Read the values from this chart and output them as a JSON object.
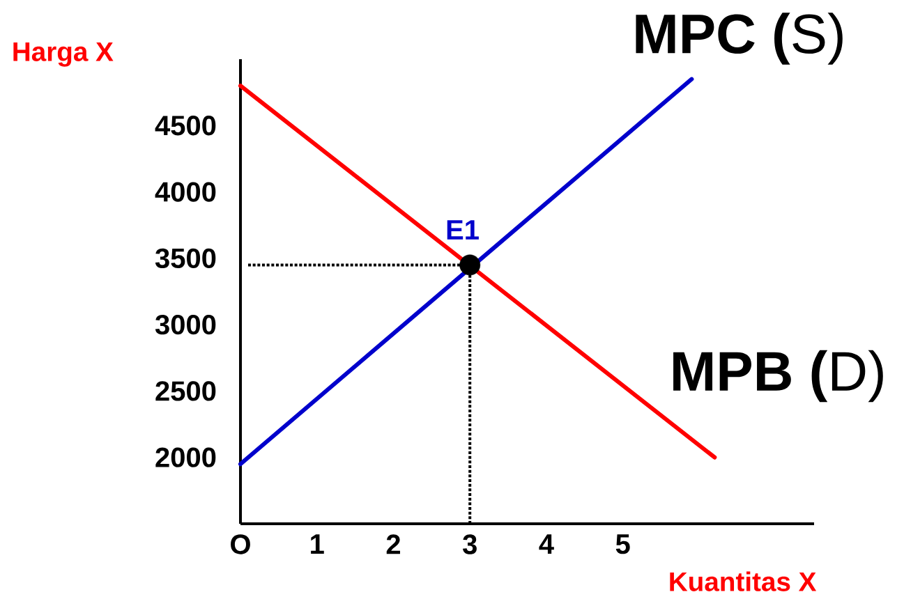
{
  "chart_data": {
    "type": "line",
    "xlabel": "Kuantitas X",
    "ylabel": "Harga X",
    "xlim": [
      0,
      7.5
    ],
    "ylim": [
      1500,
      5000
    ],
    "xticks": [
      {
        "value": 0,
        "label": "O"
      },
      1,
      2,
      3,
      4,
      5
    ],
    "yticks": [
      2000,
      2500,
      3000,
      3500,
      4000,
      4500
    ],
    "marker": "none",
    "series": [
      {
        "name": "**MPC (**S)",
        "color": "#0000cc",
        "x": [
          0,
          5.9
        ],
        "values": [
          1950,
          4850
        ]
      },
      {
        "name": "**MPB (**D)",
        "color": "#ff0000",
        "x": [
          0,
          6.2
        ],
        "values": [
          4800,
          2000
        ]
      },
      {
        "type": "scatter",
        "marker": "circle",
        "color": "#000000",
        "x": [
          3
        ],
        "values": [
          3450
        ]
      }
    ],
    "annotations": [
      {
        "text": "E1",
        "x": 3,
        "y": 3450
      }
    ],
    "ref_lines": [
      {
        "axis": "y",
        "value": 3450,
        "line_style": "dotted",
        "color": "#000000"
      },
      {
        "axis": "x",
        "value": 3,
        "line_style": "dotted",
        "color": "#000000"
      }
    ]
  }
}
